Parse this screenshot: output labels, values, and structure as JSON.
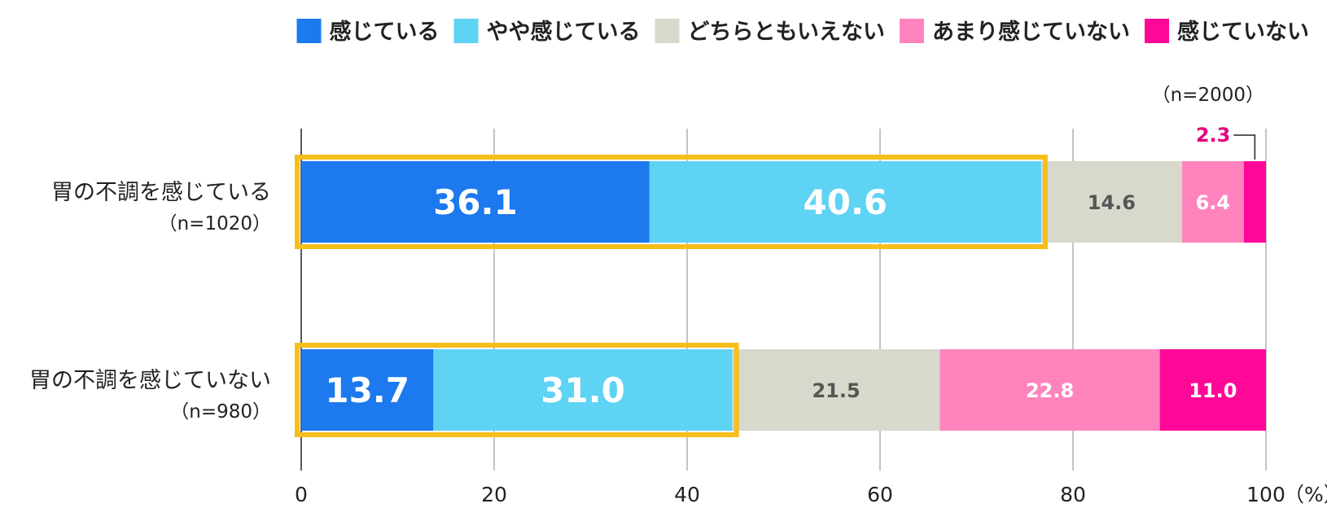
{
  "chart_data": {
    "type": "bar",
    "orientation": "horizontal",
    "stacked": true,
    "sample_note": "（n=2000）",
    "categories": [
      "胃の不調を感じている",
      "胃の不調を感じていない"
    ],
    "category_n": [
      "（n=1020）",
      "（n=980）"
    ],
    "series": [
      {
        "name": "感じている",
        "color": "#1c79ee",
        "values": [
          36.1,
          13.7
        ]
      },
      {
        "name": "やや感じている",
        "color": "#5fd3f3",
        "values": [
          40.6,
          31.0
        ]
      },
      {
        "name": "どちらともいえない",
        "color": "#d8d8cd",
        "values": [
          14.6,
          21.5
        ]
      },
      {
        "name": "あまり感じていない",
        "color": "#ff84bd",
        "values": [
          6.4,
          22.8
        ]
      },
      {
        "name": "感じていない",
        "color": "#ff0898",
        "values": [
          2.3,
          11.0
        ]
      }
    ],
    "label_colors": [
      "#ffffff",
      "#ffffff",
      "#555555",
      "#ffffff",
      "#ffffff"
    ],
    "callout_color": "#e6007e",
    "highlight_color": "#f5be1a",
    "xlim": [
      0,
      100
    ],
    "xticks": [
      0,
      20,
      40,
      60,
      80,
      100
    ],
    "x_unit": "（%）",
    "grid": true,
    "legend_position": "top-right"
  }
}
